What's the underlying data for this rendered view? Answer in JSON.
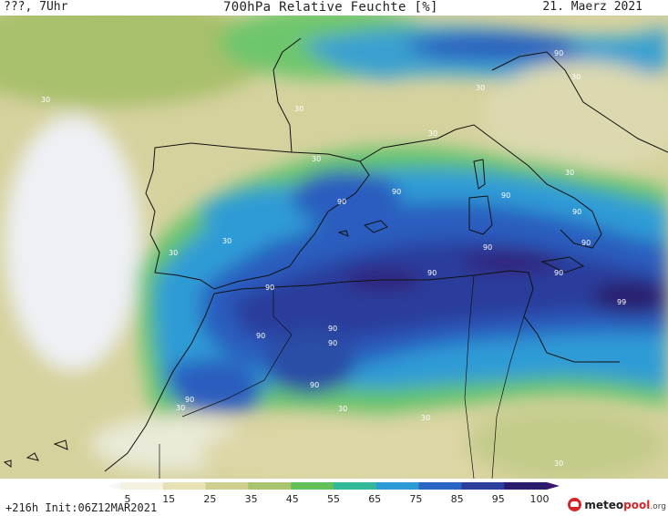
{
  "header": {
    "left_label": "???, 7Uhr",
    "title": "700hPa Relative Feuchte [%]",
    "date": "21. Maerz 2021"
  },
  "footer": {
    "run_info": "+216h  Init:06Z12MAR2021",
    "logo_main": "meteo",
    "logo_accent": "pool",
    "logo_suffix": ".org"
  },
  "colorbar": {
    "ticks": [
      "5",
      "15",
      "25",
      "35",
      "45",
      "55",
      "65",
      "75",
      "85",
      "95",
      "100"
    ],
    "colors": [
      "#f6f6fb",
      "#f5f2e2",
      "#e6e2b6",
      "#cdd08e",
      "#a9c46e",
      "#62c25a",
      "#33b89a",
      "#2f9bd6",
      "#2a64c4",
      "#2c3f9e",
      "#2a1d6c",
      "#3a1570"
    ]
  },
  "contour_labels": [
    "30",
    "90",
    "99"
  ],
  "colors": {
    "dry": "#d8d3a2",
    "very_dry": "#eef0f6",
    "moist": "#6bc36e",
    "wet": "#2e8fd4",
    "very_wet": "#2a4ea6",
    "saturated": "#2a1d6c",
    "coastline": "#111111"
  }
}
